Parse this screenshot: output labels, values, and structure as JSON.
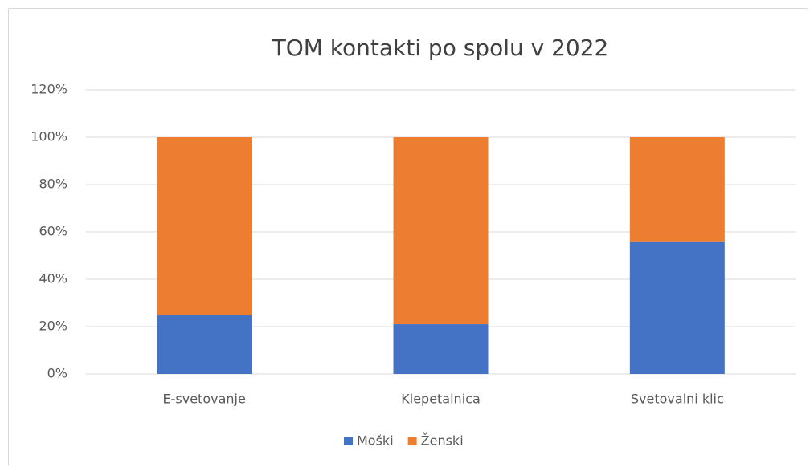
{
  "chart_data": {
    "type": "stacked_bar",
    "title": "TOM kontakti po spolu v 2022",
    "categories": [
      "E-svetovanje",
      "Klepetalnica",
      "Svetovalni klic"
    ],
    "series": [
      {
        "name": "Moški",
        "color": "#4472c4",
        "values": [
          25,
          21,
          56
        ]
      },
      {
        "name": "Ženski",
        "color": "#ed7d31",
        "values": [
          75,
          79,
          44
        ]
      }
    ],
    "ylim": [
      0,
      120
    ],
    "yticks": [
      {
        "value": 0,
        "label": "0%"
      },
      {
        "value": 20,
        "label": "20%"
      },
      {
        "value": 40,
        "label": "40%"
      },
      {
        "value": 60,
        "label": "60%"
      },
      {
        "value": 80,
        "label": "80%"
      },
      {
        "value": 100,
        "label": "100%"
      },
      {
        "value": 120,
        "label": "120%"
      }
    ],
    "grid": true,
    "legend": "bottom"
  }
}
